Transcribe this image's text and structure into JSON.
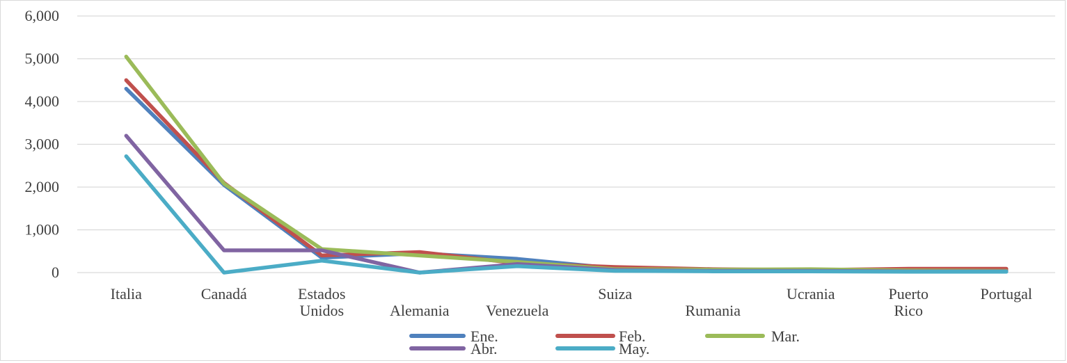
{
  "chart_data": {
    "type": "line",
    "title": "",
    "xlabel": "",
    "ylabel": "",
    "ylim": [
      0,
      6000
    ],
    "yticks": [
      0,
      1000,
      2000,
      3000,
      4000,
      5000,
      6000
    ],
    "ytick_labels": [
      "0",
      "1,000",
      "2,000",
      "3,000",
      "4,000",
      "5,000",
      "6,000"
    ],
    "grid": "horizontal",
    "legend_position": "bottom",
    "categories": [
      "Italia",
      "Canadá",
      "Estados Unidos",
      "Alemania",
      "Venezuela",
      "Suiza",
      "Rumania",
      "Ucrania",
      "Puerto Rico",
      "Portugal"
    ],
    "category_label_lines": [
      [
        "Italia"
      ],
      [
        "Canadá"
      ],
      [
        "Estados",
        "Unidos"
      ],
      [
        "Alemania"
      ],
      [
        "Venezuela"
      ],
      [
        "Suiza"
      ],
      [
        "Rumania"
      ],
      [
        "Ucrania"
      ],
      [
        "Puerto",
        "Rico"
      ],
      [
        "Portugal"
      ]
    ],
    "series": [
      {
        "name": "Ene.",
        "color": "#4f81bd",
        "values": [
          4300,
          2050,
          350,
          450,
          320,
          100,
          60,
          50,
          50,
          60
        ]
      },
      {
        "name": "Feb.",
        "color": "#c0504d",
        "values": [
          4500,
          2100,
          400,
          480,
          220,
          130,
          80,
          60,
          90,
          90
        ]
      },
      {
        "name": "Mar.",
        "color": "#9bbb59",
        "values": [
          5050,
          2080,
          550,
          400,
          250,
          80,
          70,
          80,
          50,
          40
        ]
      },
      {
        "name": "Abr.",
        "color": "#8064a2",
        "values": [
          3200,
          520,
          520,
          0,
          200,
          60,
          40,
          40,
          30,
          30
        ]
      },
      {
        "name": "May.",
        "color": "#4bacc6",
        "values": [
          2720,
          0,
          280,
          0,
          150,
          40,
          30,
          30,
          20,
          20
        ]
      }
    ]
  }
}
